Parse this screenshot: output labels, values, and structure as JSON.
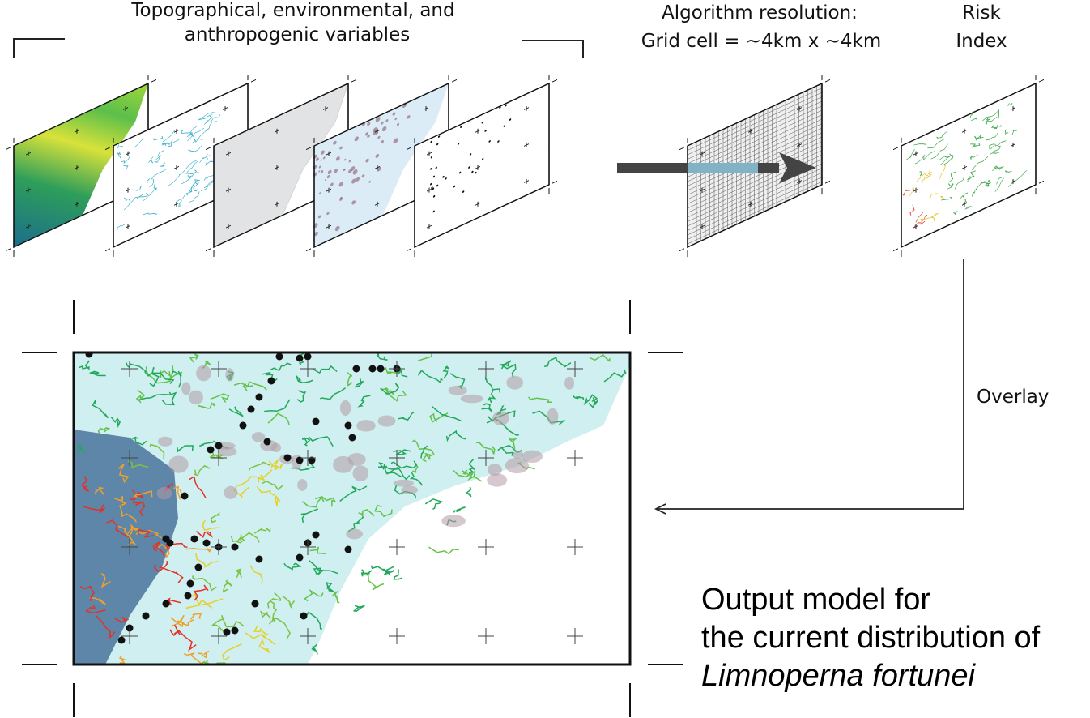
{
  "variables_title": {
    "lines": [
      "Topographical, environmental, and",
      "anthropogenic variables"
    ]
  },
  "algorithm": {
    "lines": [
      "Algorithm resolution:",
      "Grid cell = ~4km x  ~4km"
    ]
  },
  "risk_index": {
    "lines": [
      "Risk",
      "Index"
    ]
  },
  "overlay_label": "Overlay",
  "output": {
    "lines": [
      "Output model for",
      "the current distribution of"
    ],
    "species": "Limnoperna fortunei"
  }
}
